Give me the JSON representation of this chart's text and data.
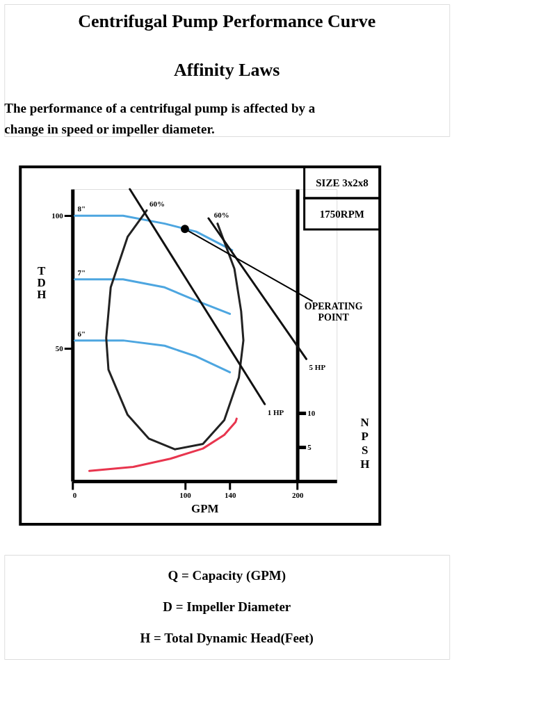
{
  "chart_data": {
    "type": "line",
    "title": "Centrifugal Pump Performance Curve",
    "subtitle": "Affinity Laws",
    "xlabel": "GPM",
    "ylabel": "TDH",
    "y2label": "NPSH",
    "xlim": [
      0,
      235
    ],
    "xticks": [
      0,
      100,
      140,
      200
    ],
    "ylim": [
      0,
      110
    ],
    "yticks": [
      50,
      100
    ],
    "y2lim": [
      0,
      43
    ],
    "y2ticks": [
      5,
      10
    ],
    "grid": false,
    "series": [
      {
        "name": "8\"",
        "color": "#4da6e0",
        "x": [
          2,
          45,
          82,
          110,
          142
        ],
        "values": [
          100,
          100,
          97,
          94,
          87
        ]
      },
      {
        "name": "7\"",
        "color": "#4da6e0",
        "x": [
          2,
          45,
          82,
          110,
          140
        ],
        "values": [
          76,
          76,
          73,
          68,
          63
        ]
      },
      {
        "name": "6\"",
        "color": "#4da6e0",
        "x": [
          2,
          45,
          82,
          110,
          140
        ],
        "values": [
          53,
          53,
          51,
          47,
          41
        ]
      },
      {
        "name": "60%",
        "color": "#222222",
        "x": [
          66,
          49,
          34,
          30,
          32,
          49,
          68,
          91,
          116,
          135,
          148,
          152,
          150,
          144,
          129
        ],
        "values": [
          102,
          92,
          73,
          54,
          42,
          25,
          16,
          12,
          14,
          23,
          39,
          53,
          64,
          80,
          97
        ]
      },
      {
        "name": "1 HP",
        "color": "#111111",
        "x": [
          171,
          51
        ],
        "values": [
          29,
          110
        ]
      },
      {
        "name": "5 HP",
        "color": "#111111",
        "x": [
          208,
          121
        ],
        "values": [
          46,
          99
        ]
      },
      {
        "color": "#e8354e",
        "axis": "y2",
        "x": [
          15,
          54,
          87,
          116,
          135,
          145,
          146
        ],
        "values": [
          1.5,
          2.1,
          3.3,
          4.8,
          6.8,
          8.7,
          9.2
        ]
      }
    ],
    "annotations": [
      "The performance of a centrifugal pump is affected by a change in speed or impeller diameter.",
      "SIZE   3x2x8",
      "1750RPM",
      {
        "text": "60%",
        "x": 129,
        "y": 97
      },
      {
        "text": "OPERATING POINT",
        "x": 100,
        "y": 95
      },
      "Q = Capacity (GPM)",
      "D = Impeller Diameter",
      "H = Total Dynamic Head(Feet)"
    ]
  }
}
